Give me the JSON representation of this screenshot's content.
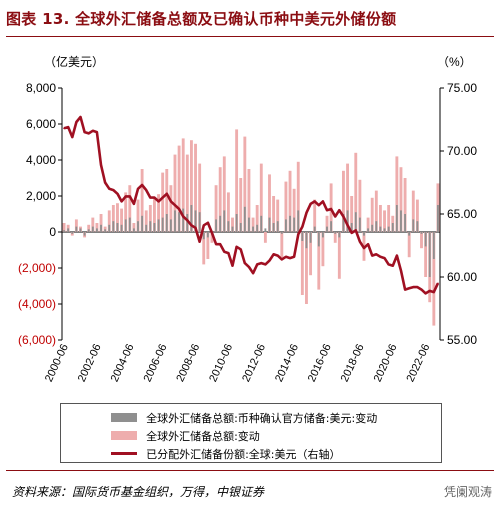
{
  "header": {
    "title": "图表 13. 全球外汇储备总额及已确认币种中美元外储份额"
  },
  "footer": {
    "source": "资料来源：国际货币基金组织，万得，中银证券",
    "watermark": "凭阑观涛"
  },
  "colors": {
    "title": "#8b0d12",
    "total_change": "#eeadad",
    "usd_change": "#8f8f8f",
    "usd_share": "#a01022",
    "negative_tick": "#c00000"
  },
  "chart_data": {
    "type": "bar+line",
    "left_unit": "（亿美元）",
    "right_unit": "（%）",
    "left_ylim": [
      -6000,
      8000
    ],
    "right_ylim": [
      55,
      75
    ],
    "left_ticks": [
      "8,000",
      "6,000",
      "4,000",
      "2,000",
      "0",
      "(2,000)",
      "(4,000)",
      "(6,000)"
    ],
    "right_ticks": [
      "75.00",
      "70.00",
      "65.00",
      "60.00",
      "55.00"
    ],
    "x_ticks": [
      "2000-06",
      "2002-06",
      "2004-06",
      "2006-06",
      "2008-06",
      "2010-06",
      "2012-06",
      "2014-06",
      "2016-06",
      "2018-06",
      "2020-06",
      "2022-06"
    ],
    "legend": [
      "全球外汇储备总额:币种确认官方储备:美元:变动",
      "全球外汇储备总额:变动",
      "已分配外汇储备份额:全球:美元（右轴）"
    ],
    "quarters": [
      "2000Q1",
      "2000Q2",
      "2000Q3",
      "2000Q4",
      "2001Q1",
      "2001Q2",
      "2001Q3",
      "2001Q4",
      "2002Q1",
      "2002Q2",
      "2002Q3",
      "2002Q4",
      "2003Q1",
      "2003Q2",
      "2003Q3",
      "2003Q4",
      "2004Q1",
      "2004Q2",
      "2004Q3",
      "2004Q4",
      "2005Q1",
      "2005Q2",
      "2005Q3",
      "2005Q4",
      "2006Q1",
      "2006Q2",
      "2006Q3",
      "2006Q4",
      "2007Q1",
      "2007Q2",
      "2007Q3",
      "2007Q4",
      "2008Q1",
      "2008Q2",
      "2008Q3",
      "2008Q4",
      "2009Q1",
      "2009Q2",
      "2009Q3",
      "2009Q4",
      "2010Q1",
      "2010Q2",
      "2010Q3",
      "2010Q4",
      "2011Q1",
      "2011Q2",
      "2011Q3",
      "2011Q4",
      "2012Q1",
      "2012Q2",
      "2012Q3",
      "2012Q4",
      "2013Q1",
      "2013Q2",
      "2013Q3",
      "2013Q4",
      "2014Q1",
      "2014Q2",
      "2014Q3",
      "2014Q4",
      "2015Q1",
      "2015Q2",
      "2015Q3",
      "2015Q4",
      "2016Q1",
      "2016Q2",
      "2016Q3",
      "2016Q4",
      "2017Q1",
      "2017Q2",
      "2017Q3",
      "2017Q4",
      "2018Q1",
      "2018Q2",
      "2018Q3",
      "2018Q4",
      "2019Q1",
      "2019Q2",
      "2019Q3",
      "2019Q4",
      "2020Q1",
      "2020Q2",
      "2020Q3",
      "2020Q4",
      "2021Q1",
      "2021Q2",
      "2021Q3",
      "2021Q4",
      "2022Q1",
      "2022Q2",
      "2022Q3",
      "2022Q4"
    ],
    "series": [
      {
        "name": "全球外汇储备总额:币种确认官方储备:美元:变动",
        "type": "bar",
        "values": [
          100,
          200,
          -100,
          300,
          200,
          -200,
          150,
          300,
          200,
          400,
          150,
          400,
          600,
          500,
          400,
          700,
          800,
          200,
          600,
          900,
          400,
          600,
          500,
          700,
          800,
          1000,
          700,
          1200,
          1100,
          1300,
          1000,
          1500,
          1200,
          1100,
          -400,
          -300,
          -100,
          700,
          900,
          1200,
          600,
          300,
          1000,
          500,
          1400,
          800,
          300,
          400,
          900,
          200,
          800,
          500,
          600,
          -100,
          700,
          900,
          800,
          1200,
          -500,
          -900,
          -600,
          300,
          -800,
          -300,
          300,
          600,
          -100,
          -300,
          1000,
          1200,
          500,
          1100,
          800,
          -200,
          200,
          400,
          600,
          300,
          200,
          300,
          500,
          1500,
          1200,
          1000,
          -200,
          700,
          600,
          -100,
          -800,
          -2500,
          -1500,
          1500
        ]
      },
      {
        "name": "全球外汇储备总额:变动",
        "type": "bar",
        "values": [
          500,
          400,
          -200,
          700,
          300,
          -300,
          400,
          800,
          500,
          1000,
          300,
          1200,
          1500,
          1600,
          1300,
          2200,
          2600,
          500,
          1800,
          3500,
          1200,
          1500,
          1900,
          2100,
          3300,
          3500,
          2600,
          4300,
          4800,
          5200,
          4300,
          5100,
          4900,
          3800,
          -1800,
          -1500,
          -600,
          2600,
          3600,
          4200,
          2200,
          800,
          5700,
          3000,
          5300,
          3500,
          800,
          1500,
          3800,
          -600,
          3200,
          2000,
          1800,
          -1400,
          2800,
          3400,
          2400,
          3900,
          -3500,
          -4000,
          -2400,
          1800,
          -3200,
          -1900,
          900,
          2700,
          -600,
          -2600,
          3400,
          3800,
          2000,
          4400,
          2900,
          -1600,
          800,
          1900,
          2300,
          1500,
          1200,
          1500,
          900,
          4200,
          3600,
          3000,
          -1400,
          2300,
          1800,
          -900,
          -2500,
          -3900,
          -5200,
          2700
        ]
      },
      {
        "name": "已分配外汇储备份额:全球:美元（右轴）",
        "type": "line",
        "values": [
          71.8,
          71.9,
          71.1,
          72.3,
          72.7,
          71.5,
          71.4,
          71.6,
          71.5,
          68.9,
          67.5,
          67.0,
          66.9,
          66.6,
          66.0,
          66.4,
          66.4,
          65.8,
          67.0,
          67.3,
          66.9,
          66.3,
          66.3,
          66.0,
          66.3,
          66.6,
          66.0,
          65.7,
          65.4,
          64.8,
          64.5,
          64.1,
          63.9,
          62.8,
          64.1,
          64.3,
          63.5,
          62.6,
          62.6,
          62.0,
          61.9,
          60.9,
          62.4,
          62.2,
          61.1,
          60.8,
          60.3,
          61.0,
          61.1,
          61.0,
          61.3,
          61.8,
          61.7,
          61.4,
          61.6,
          61.5,
          61.6,
          63.4,
          64.0,
          65.1,
          65.8,
          66.0,
          65.7,
          66.0,
          65.3,
          65.4,
          64.8,
          65.3,
          64.8,
          64.1,
          63.5,
          63.7,
          62.8,
          62.3,
          62.6,
          61.7,
          61.8,
          61.6,
          61.5,
          61.0,
          60.9,
          61.7,
          60.5,
          59.0,
          59.1,
          59.2,
          59.2,
          59.0,
          58.7,
          58.9,
          58.8,
          59.5
        ]
      }
    ]
  }
}
